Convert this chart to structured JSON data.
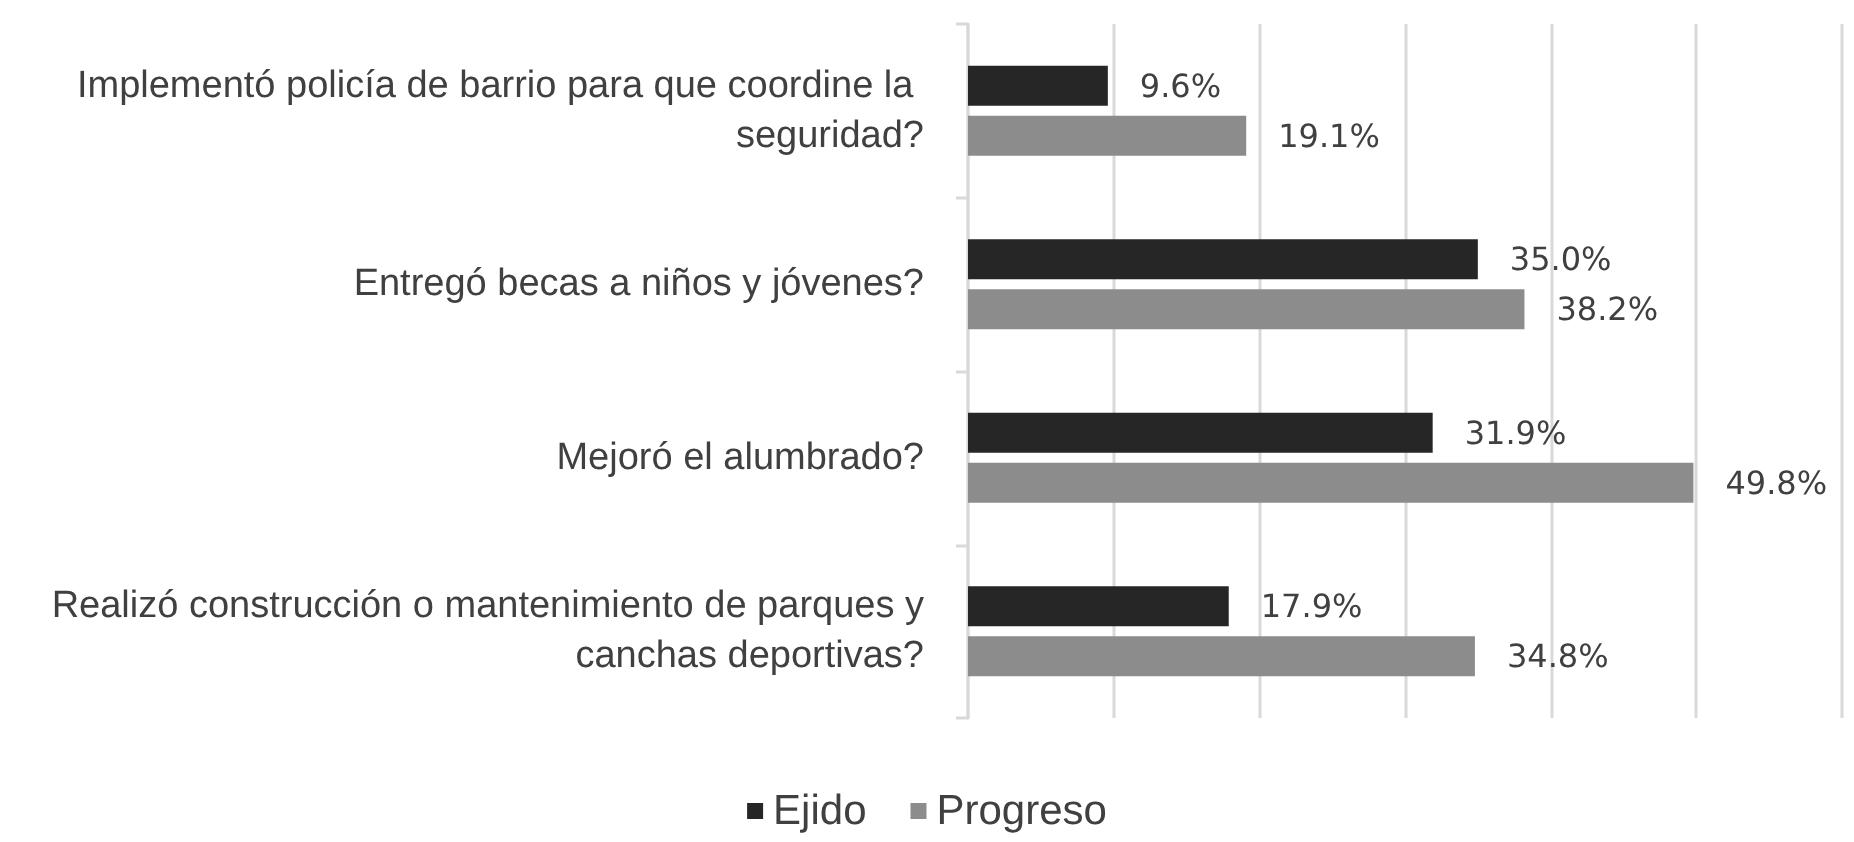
{
  "chart_data": {
    "type": "bar",
    "orientation": "horizontal",
    "categories": [
      "Implementó policía de barrio para que coordine la seguridad?",
      "Entregó becas a niños y jóvenes?",
      "Mejoró el alumbrado?",
      "Realizó construcción o mantenimiento de parques y canchas deportivas?"
    ],
    "series": [
      {
        "name": "Ejido",
        "color": "#262626",
        "values": [
          9.6,
          35.0,
          31.9,
          17.9
        ],
        "value_labels": [
          "9.6%",
          "35.0%",
          "31.9%",
          "17.9%"
        ]
      },
      {
        "name": "Progreso",
        "color": "#8c8c8c",
        "values": [
          19.1,
          38.2,
          49.8,
          34.8
        ],
        "value_labels": [
          "19.1%",
          "38.2%",
          "49.8%",
          "34.8%"
        ]
      }
    ],
    "xlim": [
      0,
      60
    ],
    "xticks": [
      {
        "value": 0,
        "label": null
      },
      {
        "value": 10,
        "label": null
      },
      {
        "value": 20,
        "label": null
      },
      {
        "value": 30,
        "label": null
      },
      {
        "value": 40,
        "label": null
      },
      {
        "value": 50,
        "label": null
      },
      {
        "value": 60,
        "label": null
      }
    ],
    "tick_labels": "y",
    "grid": "x",
    "legend": "bottom"
  }
}
